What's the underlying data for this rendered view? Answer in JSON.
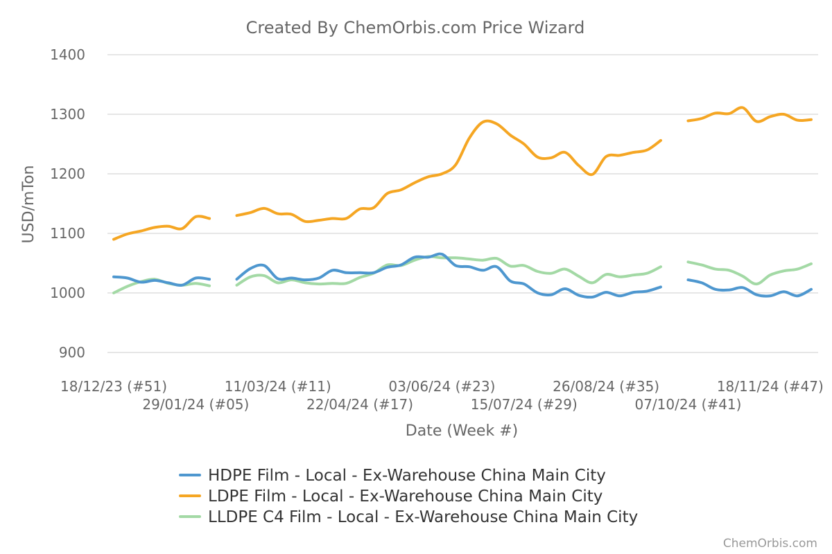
{
  "chart_data": {
    "type": "line",
    "title": "Created By ChemOrbis.com Price Wizard",
    "xlabel": "Date (Week #)",
    "ylabel": "USD/mTon",
    "ylim": [
      860,
      1420
    ],
    "yticks": [
      900,
      1000,
      1100,
      1200,
      1300,
      1400
    ],
    "grid": true,
    "legend_position": "bottom",
    "credit": "ChemOrbis.com",
    "x_start_week": "18/12/23 (#51)",
    "x_tick_labels": [
      "18/12/23 (#51)",
      "29/01/24 (#05)",
      "11/03/24 (#11)",
      "22/04/24 (#17)",
      "03/06/24 (#23)",
      "15/07/24 (#29)",
      "26/08/24 (#35)",
      "07/10/24 (#41)",
      "18/11/24 (#47)"
    ],
    "series": [
      {
        "name": "HDPE Film - Local - Ex-Warehouse China Main City",
        "color": "#4e97cf",
        "segments": [
          [
            [
              0,
              1027
            ],
            [
              1,
              1025
            ],
            [
              2,
              1018
            ],
            [
              3,
              1021
            ],
            [
              4,
              1017
            ],
            [
              5,
              1013
            ],
            [
              6,
              1025
            ],
            [
              7,
              1023
            ]
          ],
          [
            [
              9,
              1023
            ],
            [
              10,
              1041
            ],
            [
              11,
              1046
            ],
            [
              12,
              1024
            ],
            [
              13,
              1025
            ],
            [
              14,
              1022
            ],
            [
              15,
              1025
            ],
            [
              16,
              1038
            ],
            [
              17,
              1034
            ],
            [
              18,
              1034
            ],
            [
              19,
              1034
            ],
            [
              20,
              1043
            ],
            [
              21,
              1047
            ],
            [
              22,
              1060
            ],
            [
              23,
              1060
            ],
            [
              24,
              1065
            ],
            [
              25,
              1046
            ],
            [
              26,
              1044
            ],
            [
              27,
              1038
            ],
            [
              28,
              1044
            ],
            [
              29,
              1020
            ],
            [
              30,
              1015
            ],
            [
              31,
              1000
            ],
            [
              32,
              997
            ],
            [
              33,
              1007
            ],
            [
              34,
              996
            ],
            [
              35,
              993
            ],
            [
              36,
              1001
            ],
            [
              37,
              995
            ],
            [
              38,
              1001
            ],
            [
              39,
              1003
            ],
            [
              40,
              1010
            ]
          ],
          [
            [
              42,
              1022
            ],
            [
              43,
              1017
            ],
            [
              44,
              1006
            ],
            [
              45,
              1005
            ],
            [
              46,
              1009
            ],
            [
              47,
              997
            ],
            [
              48,
              995
            ],
            [
              49,
              1002
            ],
            [
              50,
              995
            ],
            [
              51,
              1006
            ]
          ]
        ]
      },
      {
        "name": "LDPE Film - Local - Ex-Warehouse China Main City",
        "color": "#f5a623",
        "segments": [
          [
            [
              0,
              1090
            ],
            [
              1,
              1099
            ],
            [
              2,
              1104
            ],
            [
              3,
              1110
            ],
            [
              4,
              1112
            ],
            [
              5,
              1108
            ],
            [
              6,
              1128
            ],
            [
              7,
              1125
            ]
          ],
          [
            [
              9,
              1130
            ],
            [
              10,
              1135
            ],
            [
              11,
              1142
            ],
            [
              12,
              1133
            ],
            [
              13,
              1132
            ],
            [
              14,
              1120
            ],
            [
              15,
              1122
            ],
            [
              16,
              1125
            ],
            [
              17,
              1125
            ],
            [
              18,
              1141
            ],
            [
              19,
              1143
            ],
            [
              20,
              1167
            ],
            [
              21,
              1173
            ],
            [
              22,
              1185
            ],
            [
              23,
              1195
            ],
            [
              24,
              1200
            ],
            [
              25,
              1215
            ],
            [
              26,
              1260
            ],
            [
              27,
              1287
            ],
            [
              28,
              1284
            ],
            [
              29,
              1265
            ],
            [
              30,
              1250
            ],
            [
              31,
              1228
            ],
            [
              32,
              1227
            ],
            [
              33,
              1236
            ],
            [
              34,
              1214
            ],
            [
              35,
              1199
            ],
            [
              36,
              1229
            ],
            [
              37,
              1231
            ],
            [
              38,
              1236
            ],
            [
              39,
              1240
            ],
            [
              40,
              1256
            ]
          ],
          [
            [
              42,
              1289
            ],
            [
              43,
              1293
            ],
            [
              44,
              1302
            ],
            [
              45,
              1301
            ],
            [
              46,
              1311
            ],
            [
              47,
              1288
            ],
            [
              48,
              1296
            ],
            [
              49,
              1300
            ],
            [
              50,
              1290
            ],
            [
              51,
              1291
            ]
          ]
        ]
      },
      {
        "name": "LLDPE C4 Film - Local - Ex-Warehouse China Main City",
        "color": "#a3d9a5",
        "segments": [
          [
            [
              0,
              1000
            ],
            [
              1,
              1011
            ],
            [
              2,
              1019
            ],
            [
              3,
              1023
            ],
            [
              4,
              1016
            ],
            [
              5,
              1013
            ],
            [
              6,
              1016
            ],
            [
              7,
              1012
            ]
          ],
          [
            [
              9,
              1013
            ],
            [
              10,
              1027
            ],
            [
              11,
              1029
            ],
            [
              12,
              1017
            ],
            [
              13,
              1022
            ],
            [
              14,
              1017
            ],
            [
              15,
              1015
            ],
            [
              16,
              1016
            ],
            [
              17,
              1016
            ],
            [
              18,
              1026
            ],
            [
              19,
              1033
            ],
            [
              20,
              1047
            ],
            [
              21,
              1046
            ],
            [
              22,
              1055
            ],
            [
              23,
              1061
            ],
            [
              24,
              1059
            ],
            [
              25,
              1059
            ],
            [
              26,
              1057
            ],
            [
              27,
              1055
            ],
            [
              28,
              1058
            ],
            [
              29,
              1045
            ],
            [
              30,
              1046
            ],
            [
              31,
              1036
            ],
            [
              32,
              1033
            ],
            [
              33,
              1040
            ],
            [
              34,
              1028
            ],
            [
              35,
              1017
            ],
            [
              36,
              1031
            ],
            [
              37,
              1027
            ],
            [
              38,
              1030
            ],
            [
              39,
              1033
            ],
            [
              40,
              1044
            ]
          ],
          [
            [
              42,
              1052
            ],
            [
              43,
              1047
            ],
            [
              44,
              1040
            ],
            [
              45,
              1038
            ],
            [
              46,
              1028
            ],
            [
              47,
              1015
            ],
            [
              48,
              1030
            ],
            [
              49,
              1037
            ],
            [
              50,
              1040
            ],
            [
              51,
              1049
            ]
          ]
        ]
      }
    ]
  }
}
